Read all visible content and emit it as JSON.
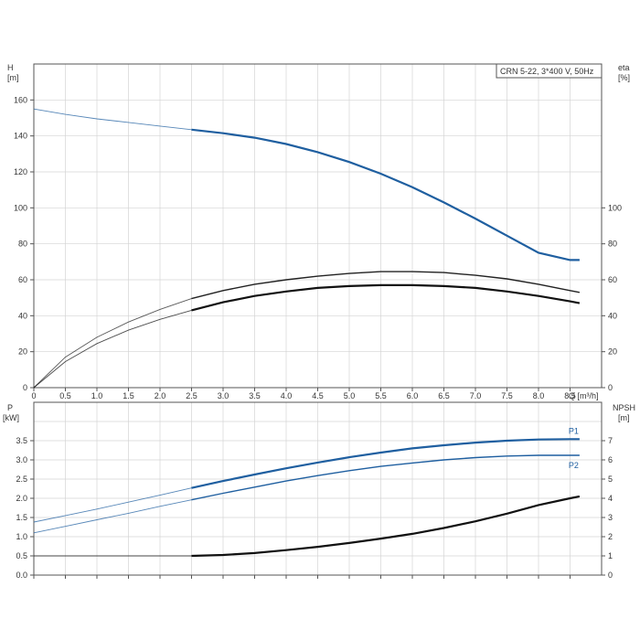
{
  "chart_data": [
    {
      "type": "line",
      "name": "pump performance curve",
      "legend_box": "CRN 5-22, 3*400 V, 50Hz",
      "xlabel": "Q [m³/h]",
      "xlim": [
        0,
        9
      ],
      "x_ticks": [
        "0",
        "0.5",
        "1.0",
        "1.5",
        "2.0",
        "2.5",
        "3.0",
        "3.5",
        "4.0",
        "4.5",
        "5.0",
        "5.5",
        "6.0",
        "6.5",
        "7.0",
        "7.5",
        "8.0",
        "8.5"
      ],
      "ylabel_left": [
        "H",
        "[m]"
      ],
      "ylim_left": [
        0,
        180
      ],
      "y_ticks_left": [
        "0",
        "20",
        "40",
        "60",
        "80",
        "100",
        "120",
        "140",
        "160"
      ],
      "ylabel_right": [
        "eta",
        "[%]"
      ],
      "ylim_right": [
        0,
        180
      ],
      "y_ticks_right": [
        "0",
        "20",
        "40",
        "60",
        "80",
        "100"
      ],
      "grid": true,
      "series": [
        {
          "axis": "left",
          "color": "#1f5fa0",
          "x": [
            0,
            0.5,
            1.0,
            1.5,
            2.0,
            2.5,
            3.0,
            3.5,
            4.0,
            4.5,
            5.0,
            5.5,
            6.0,
            6.5,
            7.0,
            7.5,
            8.0,
            8.5,
            8.65
          ],
          "y": [
            155,
            152,
            149.5,
            147.5,
            145.5,
            143.5,
            141.5,
            139,
            135.5,
            131,
            125.5,
            119,
            111.5,
            103,
            94,
            84.5,
            75,
            71,
            71
          ]
        },
        {
          "axis": "right",
          "color": "#222222",
          "x": [
            0,
            0.5,
            1.0,
            1.5,
            2.0,
            2.5,
            3.0,
            3.5,
            4.0,
            4.5,
            5.0,
            5.5,
            6.0,
            6.5,
            7.0,
            7.5,
            8.0,
            8.5,
            8.65
          ],
          "y": [
            0,
            17,
            28,
            36.5,
            43.5,
            49.5,
            54,
            57.5,
            60,
            62,
            63.5,
            64.5,
            64.5,
            64,
            62.5,
            60.5,
            57.5,
            54,
            53
          ]
        },
        {
          "axis": "right",
          "color": "#111111",
          "x": [
            0,
            0.5,
            1.0,
            1.5,
            2.0,
            2.5,
            3.0,
            3.5,
            4.0,
            4.5,
            5.0,
            5.5,
            6.0,
            6.5,
            7.0,
            7.5,
            8.0,
            8.5,
            8.65
          ],
          "y": [
            0,
            14.5,
            24.5,
            32,
            38,
            43,
            47.5,
            51,
            53.5,
            55.5,
            56.5,
            57,
            57,
            56.5,
            55.5,
            53.5,
            51,
            48,
            47
          ]
        }
      ]
    },
    {
      "type": "line",
      "name": "power and NPSH curve",
      "xlabel": "",
      "xlim": [
        0,
        9
      ],
      "ylabel_left": [
        "P",
        "[kW]"
      ],
      "ylim_left": [
        0,
        4.5
      ],
      "y_ticks_left": [
        "0.0",
        "0.5",
        "1.0",
        "1.5",
        "2.0",
        "2.5",
        "3.0",
        "3.5"
      ],
      "ylabel_right": [
        "NPSH",
        "[m]"
      ],
      "ylim_right": [
        0,
        9
      ],
      "y_ticks_right": [
        "0",
        "1",
        "2",
        "3",
        "4",
        "5",
        "6",
        "7"
      ],
      "grid": true,
      "series": [
        {
          "name": "P1",
          "axis": "left",
          "color": "#1f5fa0",
          "x": [
            0,
            0.5,
            1.0,
            1.5,
            2.0,
            2.5,
            3.0,
            3.5,
            4.0,
            4.5,
            5.0,
            5.5,
            6.0,
            6.5,
            7.0,
            7.5,
            8.0,
            8.5,
            8.65
          ],
          "y": [
            1.38,
            1.55,
            1.72,
            1.9,
            2.08,
            2.27,
            2.45,
            2.62,
            2.78,
            2.93,
            3.07,
            3.19,
            3.3,
            3.38,
            3.45,
            3.5,
            3.53,
            3.54,
            3.54
          ]
        },
        {
          "name": "P2",
          "axis": "left",
          "color": "#1f5fa0",
          "x": [
            0,
            0.5,
            1.0,
            1.5,
            2.0,
            2.5,
            3.0,
            3.5,
            4.0,
            4.5,
            5.0,
            5.5,
            6.0,
            6.5,
            7.0,
            7.5,
            8.0,
            8.5,
            8.65
          ],
          "y": [
            1.1,
            1.27,
            1.44,
            1.61,
            1.79,
            1.96,
            2.13,
            2.29,
            2.45,
            2.59,
            2.72,
            2.83,
            2.92,
            3.0,
            3.06,
            3.1,
            3.12,
            3.12,
            3.12
          ]
        },
        {
          "axis": "right",
          "color": "#111111",
          "x": [
            0,
            0.5,
            1.0,
            1.5,
            2.0,
            2.5,
            3.0,
            3.5,
            4.0,
            4.5,
            5.0,
            5.5,
            6.0,
            6.5,
            7.0,
            7.5,
            8.0,
            8.5,
            8.65
          ],
          "y": [
            1.0,
            1.0,
            1.0,
            1.0,
            1.0,
            1.0,
            1.05,
            1.15,
            1.3,
            1.47,
            1.67,
            1.9,
            2.15,
            2.45,
            2.8,
            3.2,
            3.65,
            4.0,
            4.1
          ]
        }
      ]
    }
  ]
}
